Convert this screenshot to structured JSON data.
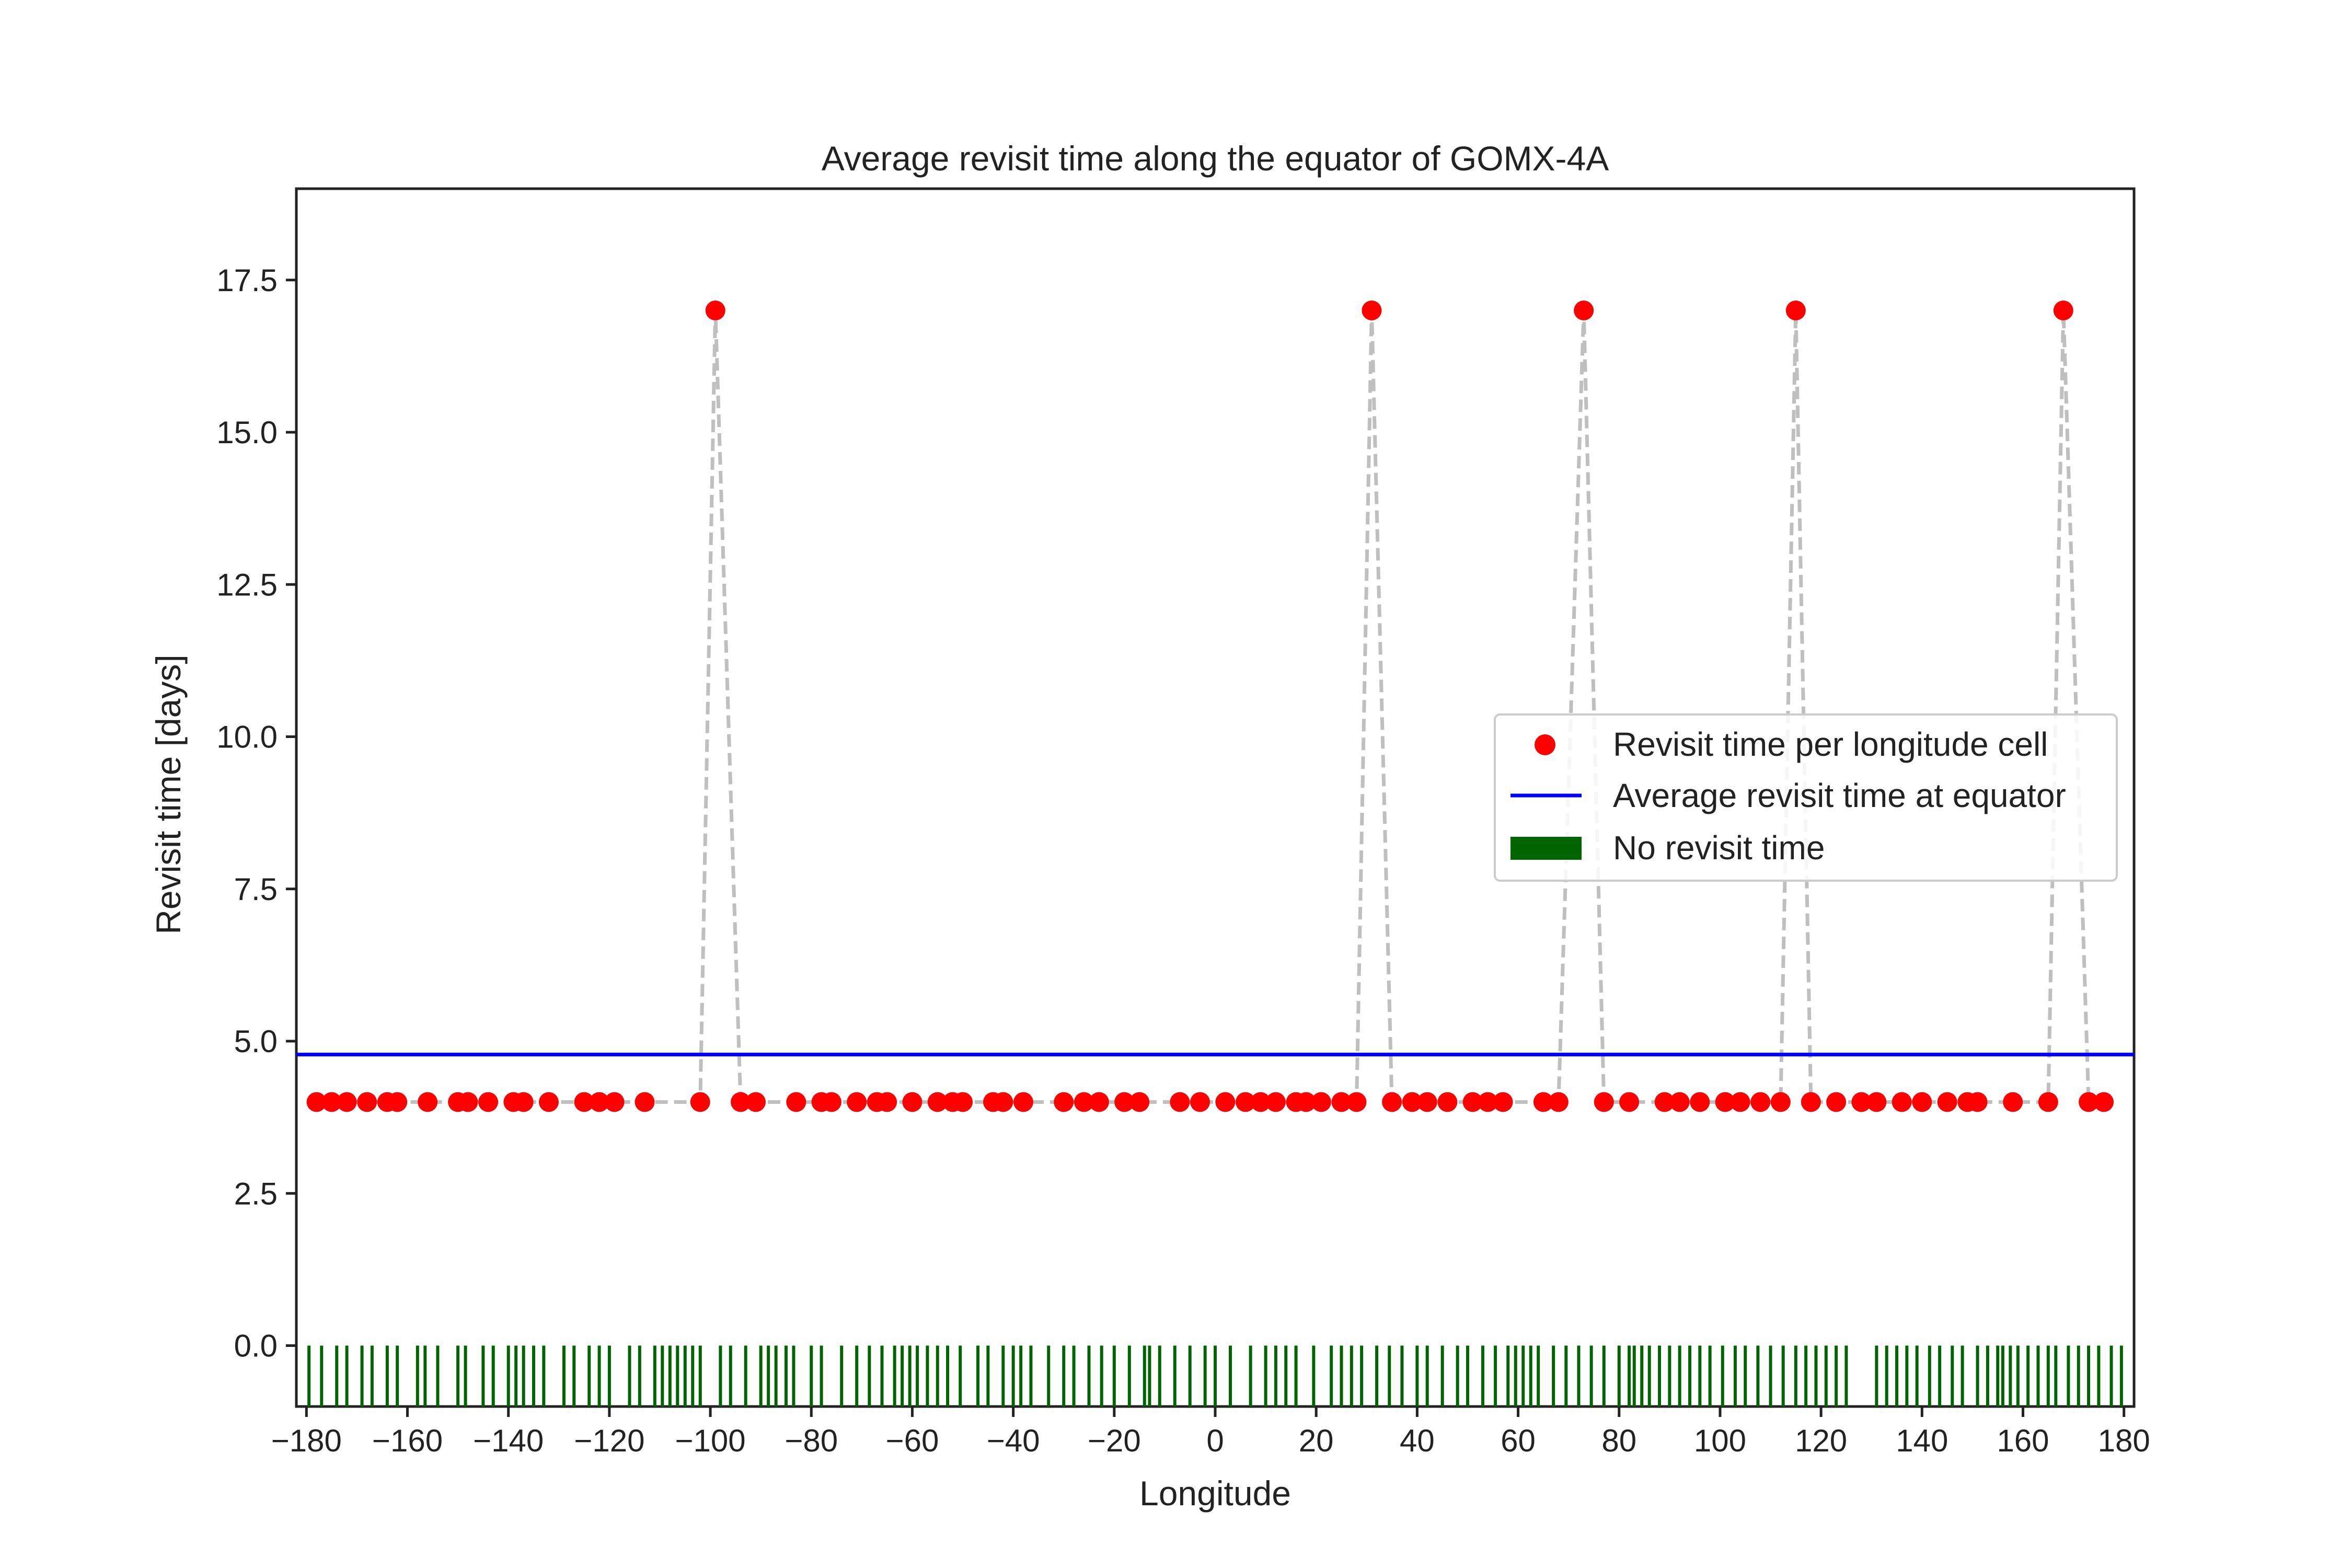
{
  "chart_data": {
    "type": "scatter",
    "title": "Average revisit time along the equator of GOMX-4A",
    "xlabel": "Longitude",
    "ylabel": "Revisit time [days]",
    "xlim": [
      -182,
      182
    ],
    "ylim": [
      -1,
      19
    ],
    "xticks": [
      -180,
      -160,
      -140,
      -120,
      -100,
      -80,
      -60,
      -40,
      -20,
      0,
      20,
      40,
      60,
      80,
      100,
      120,
      140,
      160,
      180
    ],
    "xtick_labels": [
      "−180",
      "−160",
      "−140",
      "−120",
      "−100",
      "−80",
      "−60",
      "−40",
      "−20",
      "0",
      "20",
      "40",
      "60",
      "80",
      "100",
      "120",
      "140",
      "160",
      "180"
    ],
    "yticks": [
      0,
      2.5,
      5,
      7.5,
      10,
      12.5,
      15,
      17.5
    ],
    "ytick_labels": [
      "0.0",
      "2.5",
      "5.0",
      "7.5",
      "10.0",
      "12.5",
      "15.0",
      "17.5"
    ],
    "grid": false,
    "legend_position": "center-right",
    "colors": {
      "points": "#ff0000",
      "average_line": "#0000ff",
      "no_revisit": "#006400",
      "connector": "#bfbfbf",
      "axes": "#222222"
    },
    "series": [
      {
        "name": "Revisit time per longitude cell",
        "type": "scatter",
        "connected": true,
        "points": [
          [
            -178,
            4
          ],
          [
            -175,
            4
          ],
          [
            -172,
            4
          ],
          [
            -168,
            4
          ],
          [
            -164,
            4
          ],
          [
            -162,
            4
          ],
          [
            -156,
            4
          ],
          [
            -150,
            4
          ],
          [
            -148,
            4
          ],
          [
            -144,
            4
          ],
          [
            -139,
            4
          ],
          [
            -137,
            4
          ],
          [
            -132,
            4
          ],
          [
            -125,
            4
          ],
          [
            -122,
            4
          ],
          [
            -119,
            4
          ],
          [
            -113,
            4
          ],
          [
            -102,
            4
          ],
          [
            -99,
            17
          ],
          [
            -94,
            4
          ],
          [
            -91,
            4
          ],
          [
            -83,
            4
          ],
          [
            -78,
            4
          ],
          [
            -76,
            4
          ],
          [
            -71,
            4
          ],
          [
            -67,
            4
          ],
          [
            -65,
            4
          ],
          [
            -60,
            4
          ],
          [
            -55,
            4
          ],
          [
            -52,
            4
          ],
          [
            -50,
            4
          ],
          [
            -44,
            4
          ],
          [
            -42,
            4
          ],
          [
            -38,
            4
          ],
          [
            -30,
            4
          ],
          [
            -26,
            4
          ],
          [
            -23,
            4
          ],
          [
            -18,
            4
          ],
          [
            -15,
            4
          ],
          [
            -7,
            4
          ],
          [
            -3,
            4
          ],
          [
            2,
            4
          ],
          [
            6,
            4
          ],
          [
            9,
            4
          ],
          [
            12,
            4
          ],
          [
            16,
            4
          ],
          [
            18,
            4
          ],
          [
            21,
            4
          ],
          [
            25,
            4
          ],
          [
            28,
            4
          ],
          [
            31,
            17
          ],
          [
            35,
            4
          ],
          [
            39,
            4
          ],
          [
            42,
            4
          ],
          [
            46,
            4
          ],
          [
            51,
            4
          ],
          [
            54,
            4
          ],
          [
            57,
            4
          ],
          [
            65,
            4
          ],
          [
            68,
            4
          ],
          [
            73,
            17
          ],
          [
            77,
            4
          ],
          [
            82,
            4
          ],
          [
            89,
            4
          ],
          [
            92,
            4
          ],
          [
            96,
            4
          ],
          [
            101,
            4
          ],
          [
            104,
            4
          ],
          [
            108,
            4
          ],
          [
            112,
            4
          ],
          [
            115,
            17
          ],
          [
            118,
            4
          ],
          [
            123,
            4
          ],
          [
            128,
            4
          ],
          [
            131,
            4
          ],
          [
            136,
            4
          ],
          [
            140,
            4
          ],
          [
            145,
            4
          ],
          [
            149,
            4
          ],
          [
            151,
            4
          ],
          [
            158,
            4
          ],
          [
            165,
            4
          ],
          [
            168,
            17
          ],
          [
            173,
            4
          ],
          [
            176,
            4
          ]
        ]
      },
      {
        "name": "Average revisit time at equator",
        "type": "line",
        "value": 4.78
      },
      {
        "name": "No revisit time",
        "type": "bar",
        "bar_top": 0,
        "bar_bottom": -1,
        "x": [
          -179.5,
          -177,
          -174,
          -172,
          -169,
          -167,
          -164,
          -162,
          -158,
          -156.5,
          -154,
          -150,
          -148.5,
          -145,
          -143,
          -140,
          -138.5,
          -137,
          -135,
          -133,
          -129,
          -127,
          -124,
          -122,
          -120,
          -116,
          -114,
          -111,
          -109.5,
          -108,
          -106.5,
          -105,
          -103.5,
          -102,
          -98,
          -96,
          -93,
          -90,
          -88.5,
          -87,
          -85,
          -83.5,
          -80,
          -78,
          -74,
          -71,
          -68.5,
          -66,
          -63.5,
          -62,
          -60.5,
          -59,
          -57,
          -55,
          -53,
          -50.5,
          -47,
          -45,
          -42,
          -40,
          -38.5,
          -36.5,
          -33,
          -30,
          -28,
          -25,
          -22.5,
          -20,
          -17,
          -14,
          -13,
          -11,
          -8,
          -5,
          -2,
          0,
          3,
          7,
          10,
          12,
          14,
          16,
          19.5,
          23,
          25,
          27,
          29,
          32,
          34.5,
          37,
          40,
          42,
          45,
          48,
          50,
          53,
          55.5,
          58,
          59.5,
          61,
          62.5,
          64,
          67,
          69.5,
          72,
          74.5,
          77,
          80,
          82,
          83,
          84.5,
          86,
          88,
          90,
          92,
          94,
          96,
          98,
          100.5,
          103,
          105,
          107.5,
          110,
          112.5,
          115,
          117,
          119,
          121,
          123,
          125,
          131,
          133,
          135,
          137,
          139,
          141.5,
          143.5,
          146,
          148,
          151,
          153,
          155,
          156,
          157.5,
          159,
          161,
          163,
          165,
          166.5,
          169,
          171,
          173,
          175,
          177.5,
          179.5
        ]
      }
    ]
  }
}
